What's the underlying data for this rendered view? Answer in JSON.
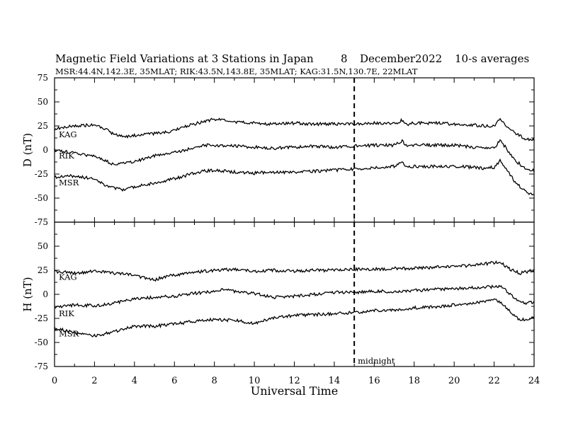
{
  "header": {
    "title": "Magnetic Field Variations at 3 Stations in Japan",
    "day": "8",
    "month_year": "December2022",
    "averaging": "10-s averages",
    "stations_line": "MSR:44.4N,142.3E, 35MLAT;  RIK:43.5N,143.8E, 35MLAT;  KAG:31.5N,130.7E, 22MLAT"
  },
  "chart_data": [
    {
      "type": "line",
      "ylabel": "D (nT)",
      "ylim": [
        -75,
        75
      ],
      "yticks": [
        75,
        50,
        25,
        0,
        -25,
        -50,
        -75
      ],
      "xlim": [
        0,
        24
      ],
      "series": [
        {
          "name": "KAG",
          "x": [
            0,
            1,
            2,
            2.5,
            3,
            3.5,
            4,
            5,
            6,
            6.5,
            7,
            7.5,
            8,
            9,
            10,
            11,
            12,
            13,
            14,
            15,
            16,
            17,
            17.4,
            17.7,
            18,
            19,
            20,
            21,
            21.5,
            22,
            22.3,
            22.6,
            23,
            23.5,
            24
          ],
          "values": [
            22,
            25,
            26,
            22,
            16,
            14,
            15,
            17,
            20,
            24,
            27,
            30,
            32,
            29,
            28,
            27,
            28,
            27,
            27,
            27,
            28,
            27,
            31,
            27,
            28,
            28,
            27,
            26,
            25,
            25,
            33,
            25,
            18,
            12,
            10
          ]
        },
        {
          "name": "RIK",
          "x": [
            0,
            1,
            2,
            2.5,
            3,
            3.5,
            4,
            5,
            6,
            6.5,
            7,
            7.5,
            8,
            9,
            10,
            11,
            12,
            13,
            14,
            15,
            16,
            17,
            17.4,
            17.7,
            18,
            19,
            20,
            21,
            21.5,
            22,
            22.3,
            22.6,
            23,
            23.5,
            24
          ],
          "values": [
            0,
            -3,
            -7,
            -11,
            -15,
            -14,
            -12,
            -6,
            -3,
            0,
            2,
            5,
            5,
            4,
            3,
            2,
            3,
            4,
            3,
            4,
            5,
            5,
            9,
            4,
            5,
            5,
            5,
            3,
            2,
            2,
            10,
            2,
            -10,
            -18,
            -22
          ]
        },
        {
          "name": "MSR",
          "x": [
            0,
            1,
            2,
            2.5,
            3,
            3.5,
            4,
            5,
            6,
            6.5,
            7,
            7.5,
            8,
            9,
            10,
            11,
            12,
            13,
            14,
            15,
            16,
            17,
            17.4,
            17.7,
            18,
            19,
            20,
            21,
            21.5,
            22,
            22.3,
            22.6,
            23,
            23.5,
            24
          ],
          "values": [
            -28,
            -27,
            -30,
            -36,
            -40,
            -41,
            -38,
            -34,
            -30,
            -27,
            -24,
            -22,
            -21,
            -23,
            -24,
            -23,
            -23,
            -22,
            -21,
            -20,
            -18,
            -17,
            -13,
            -18,
            -17,
            -17,
            -17,
            -18,
            -19,
            -18,
            -11,
            -19,
            -32,
            -42,
            -48
          ]
        }
      ],
      "annotations": []
    },
    {
      "type": "line",
      "ylabel": "H (nT)",
      "ylim": [
        -75,
        75
      ],
      "yticks": [
        75,
        50,
        25,
        0,
        -25,
        -50,
        -75
      ],
      "xlim": [
        0,
        24
      ],
      "xlabel": "Universal Time",
      "xticks": [
        0,
        2,
        4,
        6,
        8,
        10,
        12,
        14,
        16,
        18,
        20,
        22,
        24
      ],
      "series": [
        {
          "name": "KAG",
          "x": [
            0,
            1,
            2,
            3,
            4,
            4.5,
            5,
            5.5,
            6,
            7,
            8,
            9,
            10,
            11,
            12,
            13,
            14,
            15,
            16,
            17,
            18,
            19,
            20,
            21,
            22,
            22.4,
            22.8,
            23.3,
            24
          ],
          "values": [
            24,
            22,
            24,
            22,
            20,
            17,
            15,
            18,
            20,
            23,
            25,
            26,
            24,
            25,
            24,
            25,
            25,
            26,
            26,
            27,
            27,
            28,
            29,
            30,
            33,
            32,
            26,
            22,
            25
          ]
        },
        {
          "name": "RIK",
          "x": [
            0,
            1,
            2,
            3,
            4,
            5,
            6,
            7,
            8,
            8.5,
            9,
            10,
            11,
            12,
            13,
            14,
            15,
            16,
            17,
            18,
            19,
            20,
            21,
            22,
            22.3,
            22.6,
            23,
            23.5,
            24
          ],
          "values": [
            -14,
            -11,
            -12,
            -9,
            -5,
            -3,
            -2,
            1,
            3,
            5,
            3,
            1,
            -3,
            -2,
            0,
            2,
            2,
            3,
            3,
            4,
            5,
            6,
            7,
            8,
            9,
            4,
            -4,
            -9,
            -8
          ]
        },
        {
          "name": "MSR",
          "x": [
            0,
            1,
            2,
            3,
            4,
            5,
            6,
            7,
            8,
            9,
            10,
            11,
            12,
            13,
            14,
            15,
            16,
            17,
            18,
            19,
            20,
            21,
            22,
            22.4,
            22.8,
            23.3,
            24
          ],
          "values": [
            -35,
            -40,
            -43,
            -39,
            -33,
            -33,
            -31,
            -28,
            -26,
            -27,
            -30,
            -24,
            -22,
            -21,
            -20,
            -19,
            -17,
            -16,
            -14,
            -13,
            -11,
            -9,
            -5,
            -10,
            -18,
            -27,
            -24
          ]
        }
      ],
      "annotations": [
        {
          "x": 15,
          "text": "midnight"
        }
      ]
    }
  ],
  "midnight_ut": 15
}
